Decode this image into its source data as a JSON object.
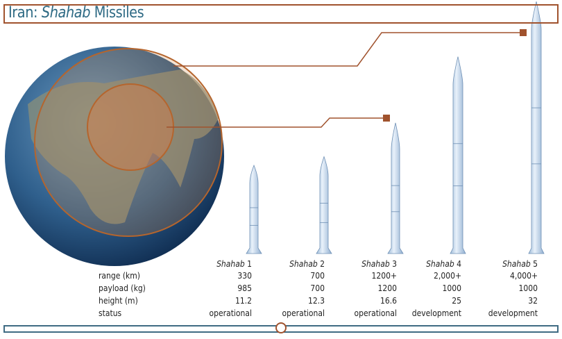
{
  "title": {
    "prefix": "Iran: ",
    "italic": "Shahab",
    "suffix": " Missiles"
  },
  "row_labels": [
    "range (km)",
    "payload (kg)",
    "height (m)",
    "status"
  ],
  "missiles": [
    {
      "name_italic": "Shahab",
      "num": " 1",
      "range": "330",
      "payload": "985",
      "height": "11.2",
      "status": "operational"
    },
    {
      "name_italic": "Shahab",
      "num": " 2",
      "range": "700",
      "payload": "700",
      "height": "12.3",
      "status": "operational"
    },
    {
      "name_italic": "Shahab",
      "num": " 3",
      "range": "1200+",
      "payload": "1200",
      "height": "16.6",
      "status": "operational"
    },
    {
      "name_italic": "Shahab",
      "num": " 4",
      "range": "2,000+",
      "payload": "1000",
      "height": "25",
      "status": "development"
    },
    {
      "name_italic": "Shahab",
      "num": " 5",
      "range": "4,000+",
      "payload": "1000",
      "height": "32",
      "status": "development"
    }
  ],
  "slider": {
    "value": 0.5
  },
  "colors": {
    "accent": "#a0522d",
    "title": "#2e6a84",
    "rocket": "#c9dcef",
    "slider": "#3f6b83"
  }
}
